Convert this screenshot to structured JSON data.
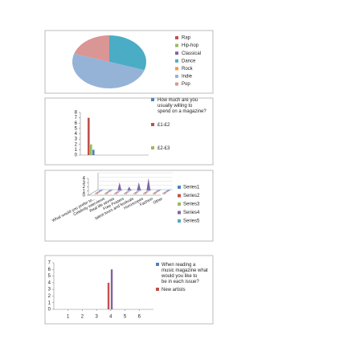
{
  "chart_data": [
    {
      "type": "pie",
      "categories": [
        "Rap",
        "Hip-hop",
        "Classical",
        "Dance",
        "Rock",
        "Indie",
        "Pop"
      ],
      "values": [
        0,
        0,
        0,
        30,
        0,
        50,
        20
      ],
      "colors": [
        "#c0504d",
        "#9bbb59",
        "#8064a2",
        "#4bacc6",
        "#f79646",
        "#95b3d7",
        "#d99694"
      ]
    },
    {
      "type": "bar",
      "series": [
        {
          "name": "How much are you usually willing to spend on a magazine?",
          "color": "#4f81bd",
          "values": [
            1
          ]
        },
        {
          "name": "£1-£2",
          "color": "#c0504d",
          "values": [
            7
          ]
        },
        {
          "name": "£2-£3",
          "color": "#9bbb59",
          "values": [
            2
          ]
        }
      ],
      "ylim": [
        0,
        8
      ],
      "yticks": [
        0,
        1,
        2,
        3,
        4,
        5,
        6,
        7,
        8
      ]
    },
    {
      "type": "bar3d",
      "categories": [
        "What would you prefer to...",
        "Celebrity interviews",
        "Real life stories",
        "Free Posters",
        "latest tours and festivals",
        "Horoscopes",
        "Fashion",
        "Other"
      ],
      "series": [
        {
          "name": "Series1",
          "color": "#4f81bd",
          "values": [
            0,
            0,
            0,
            0,
            0,
            0,
            0,
            0
          ]
        },
        {
          "name": "Series2",
          "color": "#c0504d",
          "values": [
            0,
            0,
            0,
            0,
            0,
            0,
            0,
            0
          ]
        },
        {
          "name": "Series3",
          "color": "#9bbb59",
          "values": [
            0,
            0,
            0,
            0,
            0,
            0,
            0,
            0
          ]
        },
        {
          "name": "Series4",
          "color": "#8064a2",
          "values": [
            0,
            0,
            2,
            1,
            2,
            3,
            0,
            0
          ]
        },
        {
          "name": "Series5",
          "color": "#4bacc6",
          "values": [
            0,
            0,
            0,
            0,
            0,
            0,
            0,
            0
          ]
        }
      ],
      "ylim": [
        0,
        4
      ],
      "yticks": [
        0,
        1,
        2,
        3,
        4
      ]
    },
    {
      "type": "xbar",
      "x": [
        4
      ],
      "series": [
        {
          "name": "When reading a music magazine what would you like to be in each issue?",
          "color": "#4f81bd",
          "values": [
            null
          ]
        },
        {
          "name": "New artists",
          "color": "#c0504d",
          "values": [
            4
          ]
        },
        {
          "color": "#8064a2",
          "values": [
            6
          ]
        }
      ],
      "xlim": [
        0,
        7
      ],
      "xticks": [
        1,
        2,
        3,
        4,
        5,
        6
      ],
      "ylim": [
        0,
        7
      ],
      "yticks": [
        0,
        1,
        2,
        3,
        4,
        5,
        6,
        7
      ]
    }
  ]
}
